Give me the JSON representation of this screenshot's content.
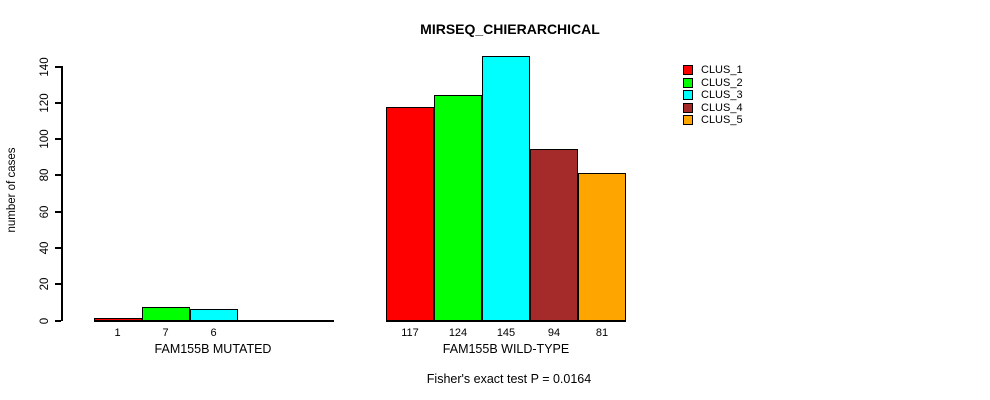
{
  "chart_data": {
    "type": "bar",
    "title": "MIRSEQ_CHIERARCHICAL",
    "ylabel": "number of cases",
    "xlabel": "",
    "ylim": [
      0,
      148
    ],
    "yticks": [
      0,
      20,
      40,
      60,
      80,
      100,
      120,
      140
    ],
    "grid": false,
    "legend_position": "top-right",
    "legend": [
      "CLUS_1",
      "CLUS_2",
      "CLUS_3",
      "CLUS_4",
      "CLUS_5"
    ],
    "colors": [
      "#ff0000",
      "#00ff00",
      "#00ffff",
      "#a52a2a",
      "#ffa500"
    ],
    "axis_color": "#000000",
    "groups": [
      {
        "label": "FAM155B MUTATED",
        "values": [
          1,
          7,
          6,
          0,
          0
        ]
      },
      {
        "label": "FAM155B WILD-TYPE",
        "values": [
          117,
          124,
          145,
          94,
          81
        ]
      }
    ],
    "annotation": "Fisher's exact test P = 0.0164"
  }
}
